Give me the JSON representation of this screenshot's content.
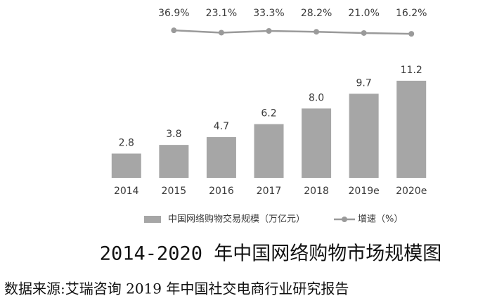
{
  "chart_data": {
    "type": "bar",
    "title": "2014-2020 年中国网络购物市场规模图",
    "source": "数据来源:艾瑞咨询 2019 年中国社交电商行业研究报告",
    "categories": [
      "2014",
      "2015",
      "2016",
      "2017",
      "2018",
      "2019e",
      "2020e"
    ],
    "ylim": [
      0,
      12
    ],
    "y2lim": [
      0,
      100
    ],
    "legend": "bottom",
    "series": [
      {
        "name": "中国网络购物交易规模（万亿元）",
        "type": "bar",
        "color": "#a6a6a6",
        "values": [
          2.8,
          3.8,
          4.7,
          6.2,
          8.0,
          9.7,
          11.2
        ],
        "value_labels": [
          "2.8",
          "3.8",
          "4.7",
          "6.2",
          "8.0",
          "9.7",
          "11.2"
        ]
      },
      {
        "name": "增速（%）",
        "type": "line",
        "axis": "y2",
        "color": "#9a9a9a",
        "values": [
          null,
          36.9,
          23.1,
          33.3,
          28.2,
          21.0,
          16.2
        ],
        "value_labels": [
          null,
          "36.9%",
          "23.1%",
          "33.3%",
          "28.2%",
          "21.0%",
          "16.2%"
        ]
      }
    ]
  }
}
